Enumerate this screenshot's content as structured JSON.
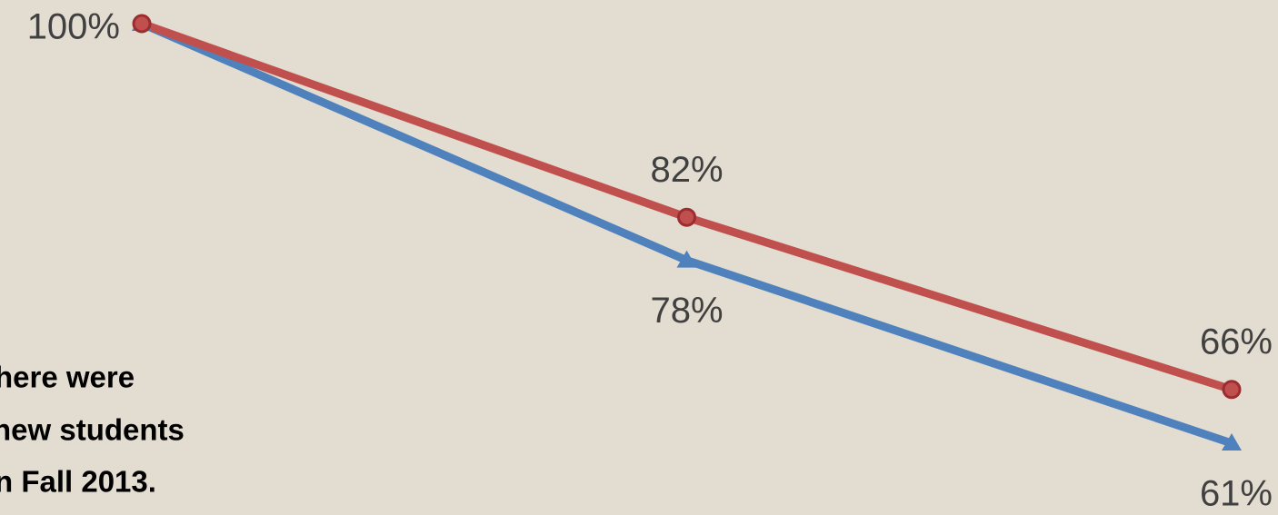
{
  "chart_data": {
    "type": "line",
    "categories": [
      null,
      null,
      null
    ],
    "series": [
      {
        "color": "#4f81bd",
        "values": [
          100,
          78,
          61
        ],
        "value_labels": [
          null,
          "78%",
          "61%"
        ]
      },
      {
        "color": "#c0504d",
        "values": [
          100,
          82,
          66
        ],
        "value_labels": [
          "100%",
          "82%",
          "66%"
        ]
      }
    ],
    "annotations": [
      "here were",
      "new students",
      "n Fall 2013."
    ]
  }
}
